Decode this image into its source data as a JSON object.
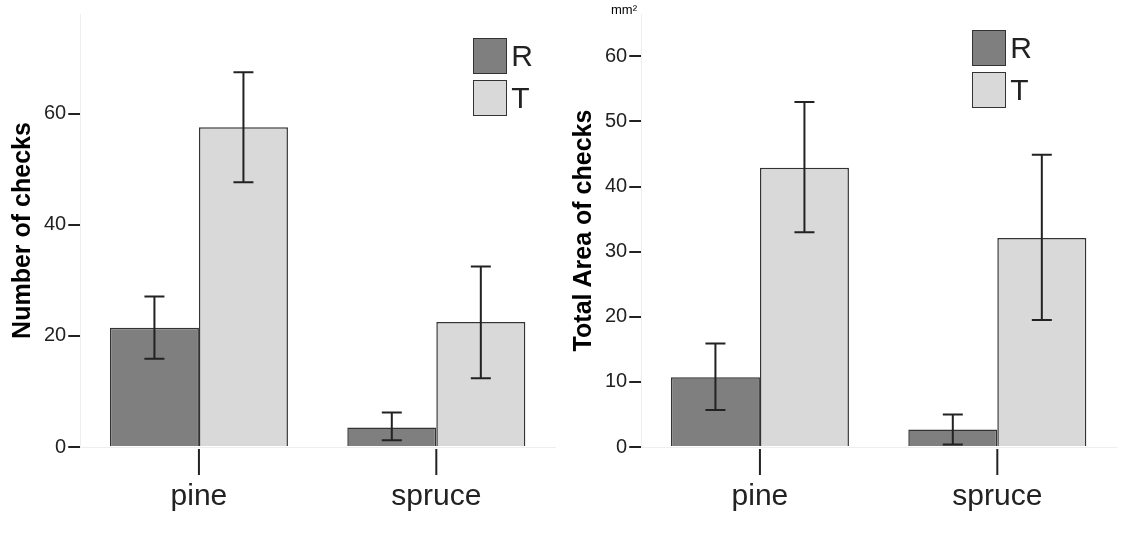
{
  "chart_data": [
    {
      "type": "bar",
      "categories": [
        "pine",
        "spruce"
      ],
      "ylabel": "Number of checks",
      "ylim": [
        0,
        78
      ],
      "yticks": [
        0,
        20,
        40,
        60
      ],
      "grid": false,
      "legend": "top right",
      "series": [
        {
          "name": "R",
          "color": "#7f7f7f",
          "values": [
            21.5,
            3.5
          ],
          "errors": [
            [
              15.9,
              27.1
            ],
            [
              1.2,
              6.2
            ]
          ]
        },
        {
          "name": "T",
          "color": "#d9d9d9",
          "values": [
            57.6,
            22.5
          ],
          "errors": [
            [
              47.7,
              67.5
            ],
            [
              12.4,
              32.5
            ]
          ]
        }
      ]
    },
    {
      "type": "bar",
      "categories": [
        "pine",
        "spruce"
      ],
      "ylabel": "Total Area of checks",
      "ylim": [
        0,
        66.5
      ],
      "yticks": [
        0,
        10,
        20,
        30,
        40,
        50,
        60
      ],
      "grid": false,
      "legend": "top right",
      "annotations": [
        "mm²"
      ],
      "series": [
        {
          "name": "R",
          "color": "#7f7f7f",
          "values": [
            10.7,
            2.7
          ],
          "errors": [
            [
              5.7,
              15.9
            ],
            [
              0.4,
              5.0
            ]
          ]
        },
        {
          "name": "T",
          "color": "#d9d9d9",
          "values": [
            42.9,
            32.1
          ],
          "errors": [
            [
              33.0,
              53.0
            ],
            [
              19.5,
              44.9
            ]
          ]
        }
      ]
    }
  ]
}
